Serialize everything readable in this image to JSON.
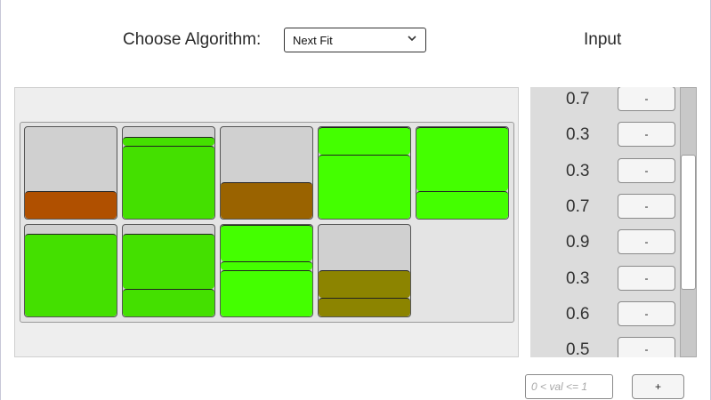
{
  "header": {
    "algorithm_label": "Choose Algorithm:",
    "algorithm_selected": "Next Fit",
    "input_title": "Input"
  },
  "bins": [
    {
      "items": [
        {
          "size": 0.3,
          "color": "#b05000"
        }
      ]
    },
    {
      "items": [
        {
          "size": 0.8,
          "color": "#44e000"
        },
        {
          "size": 0.1,
          "color": "#44e000"
        }
      ]
    },
    {
      "items": [
        {
          "size": 0.4,
          "color": "#9a6300"
        }
      ]
    },
    {
      "items": [
        {
          "size": 0.7,
          "color": "#44ff00"
        },
        {
          "size": 0.3,
          "color": "#44ff00"
        }
      ]
    },
    {
      "items": [
        {
          "size": 0.3,
          "color": "#44ff00"
        },
        {
          "size": 0.7,
          "color": "#44ff00"
        }
      ]
    },
    {
      "items": [
        {
          "size": 0.9,
          "color": "#44e000"
        }
      ]
    },
    {
      "items": [
        {
          "size": 0.3,
          "color": "#44e000"
        },
        {
          "size": 0.6,
          "color": "#44e000"
        }
      ]
    },
    {
      "items": [
        {
          "size": 0.5,
          "color": "#44ff00"
        },
        {
          "size": 0.1,
          "color": "#44ff00"
        },
        {
          "size": 0.4,
          "color": "#44ff00"
        }
      ]
    },
    {
      "items": [
        {
          "size": 0.2,
          "color": "#8c8400"
        },
        {
          "size": 0.3,
          "color": "#8c8400"
        }
      ]
    }
  ],
  "input_list": {
    "values": [
      "0.7",
      "0.3",
      "0.3",
      "0.7",
      "0.9",
      "0.3",
      "0.6",
      "0.5"
    ],
    "remove_label": "-"
  },
  "new_value": {
    "placeholder": "0 < val <= 1",
    "add_label": "+"
  }
}
